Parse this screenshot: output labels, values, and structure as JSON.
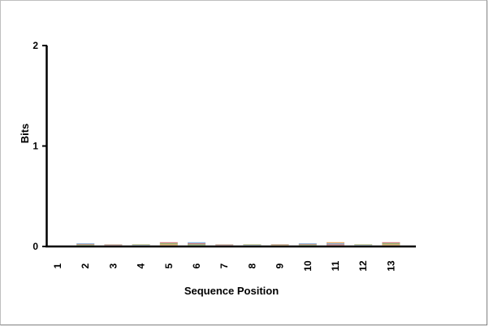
{
  "chart_data": {
    "type": "bar",
    "title": "",
    "xlabel": "Sequence Position",
    "ylabel": "Bits",
    "ylim": [
      0,
      2
    ],
    "yticks": [
      "0",
      "1",
      "2"
    ],
    "categories": [
      "1",
      "2",
      "3",
      "4",
      "5",
      "6",
      "7",
      "8",
      "9",
      "10",
      "11",
      "12",
      "13"
    ],
    "series": [
      {
        "values": [
          0.0,
          0.02,
          0.01,
          0.01,
          0.03,
          0.03,
          0.01,
          0.01,
          0.01,
          0.02,
          0.03,
          0.01,
          0.03
        ]
      }
    ],
    "grid": false,
    "legend": "none"
  },
  "colors": {
    "axis": "#000000",
    "A": "#e08a2a",
    "C": "#6aa84f",
    "G": "#c0504d",
    "T": "#5b9bd5"
  }
}
